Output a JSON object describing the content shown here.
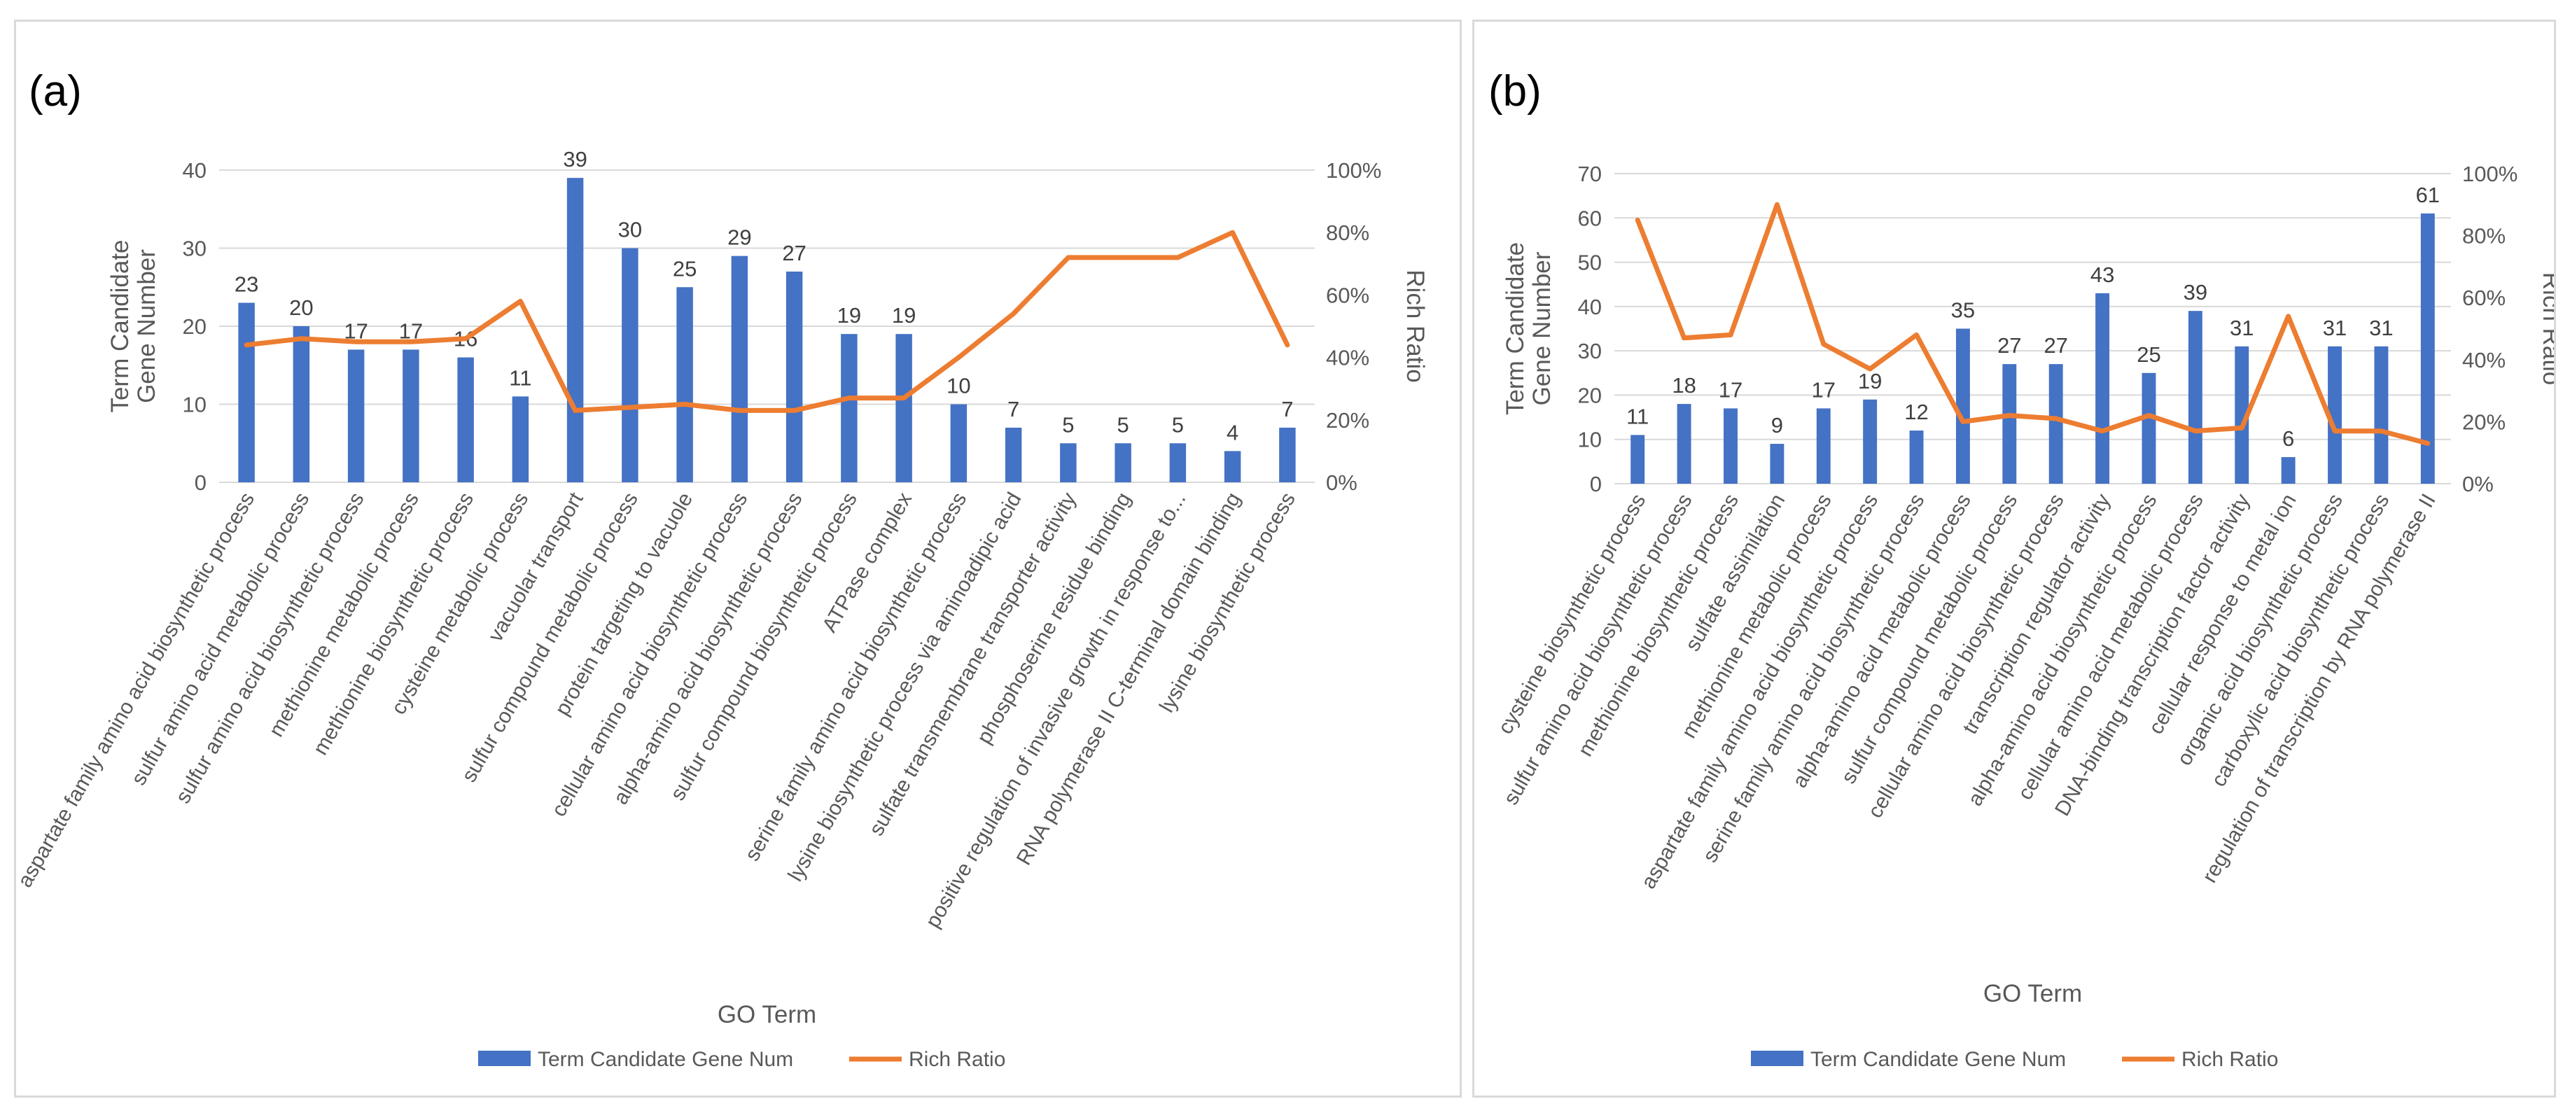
{
  "chart_data": [
    {
      "panel_label": "(a)",
      "type": "bar+line",
      "xlabel": "GO Term",
      "ylabel_left_line1": "Term Candidate",
      "ylabel_left_line2": "Gene Number",
      "ylabel_right": "Rich Ratio",
      "ylim_left": [
        0,
        40
      ],
      "yticks_left": [
        "0",
        "10",
        "20",
        "30",
        "40"
      ],
      "ylim_right": [
        0,
        1
      ],
      "yticks_right": [
        "0%",
        "20%",
        "40%",
        "60%",
        "80%",
        "100%"
      ],
      "legend": {
        "bar": "Term Candidate Gene Num",
        "line": "Rich Ratio"
      },
      "colors": {
        "bar": "#4472c4",
        "line": "#ed7d31"
      },
      "categories": [
        "aspartate family amino acid biosynthetic process",
        "sulfur amino acid metabolic process",
        "sulfur amino acid biosynthetic process",
        "methionine metabolic process",
        "methionine biosynthetic process",
        "cysteine metabolic process",
        "vacuolar transport",
        "sulfur compound metabolic process",
        "protein targeting to vacuole",
        "cellular amino acid biosynthetic process",
        "alpha-amino acid biosynthetic process",
        "sulfur compound biosynthetic process",
        "ATPase complex",
        "serine family amino acid biosynthetic process",
        "lysine biosynthetic process via aminoadipic acid",
        "sulfate transmembrane transporter activity",
        "phosphoserine residue binding",
        "positive regulation of invasive growth in response to...",
        "RNA polymerase II C-terminal domain binding",
        "lysine biosynthetic process"
      ],
      "bar_values": [
        23,
        20,
        17,
        17,
        16,
        11,
        39,
        30,
        25,
        29,
        27,
        19,
        19,
        10,
        7,
        5,
        5,
        5,
        4,
        7
      ],
      "bar_labels": [
        "23",
        "20",
        "17",
        "17",
        "16",
        "11",
        "39",
        "30",
        "25",
        "29",
        "27",
        "19",
        "19",
        "10",
        "7",
        "5",
        "5",
        "5",
        "4",
        "7"
      ],
      "line_values": [
        0.44,
        0.46,
        0.45,
        0.45,
        0.46,
        0.58,
        0.23,
        0.24,
        0.25,
        0.23,
        0.23,
        0.27,
        0.27,
        0.4,
        0.54,
        0.72,
        0.72,
        0.72,
        0.8,
        0.44
      ]
    },
    {
      "panel_label": "(b)",
      "type": "bar+line",
      "xlabel": "GO Term",
      "ylabel_left_line1": "Term Candidate",
      "ylabel_left_line2": "Gene Number",
      "ylabel_right": "Rich Ratio",
      "ylim_left": [
        0,
        70
      ],
      "yticks_left": [
        "0",
        "10",
        "20",
        "30",
        "40",
        "50",
        "60",
        "70"
      ],
      "ylim_right": [
        0,
        1
      ],
      "yticks_right": [
        "0%",
        "20%",
        "40%",
        "60%",
        "80%",
        "100%"
      ],
      "legend": {
        "bar": "Term Candidate Gene Num",
        "line": "Rich Ratio"
      },
      "colors": {
        "bar": "#4472c4",
        "line": "#ed7d31"
      },
      "categories": [
        "cysteine biosynthetic process",
        "sulfur amino acid biosynthetic process",
        "methionine biosynthetic process",
        "sulfate assimilation",
        "methionine metabolic process",
        "aspartate family amino acid biosynthetic process",
        "serine family amino acid biosynthetic process",
        "alpha-amino acid metabolic process",
        "sulfur compound metabolic process",
        "cellular amino acid biosynthetic process",
        "transcription regulator activity",
        "alpha-amino acid biosynthetic process",
        "cellular amino acid metabolic process",
        "DNA-binding transcription factor activity",
        "cellular response to metal ion",
        "organic acid biosynthetic process",
        "carboxylic acid biosynthetic process",
        "regulation of transcription by RNA polymerase II"
      ],
      "bar_values": [
        11,
        18,
        17,
        9,
        17,
        19,
        12,
        35,
        27,
        27,
        43,
        25,
        39,
        31,
        6,
        31,
        31,
        61
      ],
      "bar_labels": [
        "11",
        "18",
        "17",
        "9",
        "17",
        "19",
        "12",
        "35",
        "27",
        "27",
        "43",
        "25",
        "39",
        "31",
        "6",
        "31",
        "31",
        "61"
      ],
      "line_values": [
        0.85,
        0.47,
        0.48,
        0.9,
        0.45,
        0.37,
        0.48,
        0.2,
        0.22,
        0.21,
        0.17,
        0.22,
        0.17,
        0.18,
        0.54,
        0.17,
        0.17,
        0.13
      ]
    }
  ]
}
